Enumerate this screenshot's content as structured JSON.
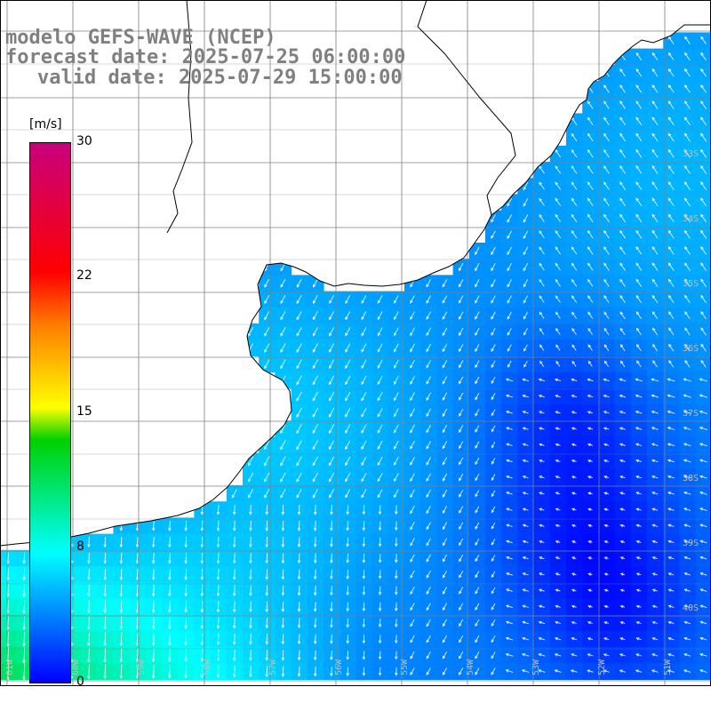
{
  "title": {
    "line1": "modelo GEFS-WAVE (NCEP)",
    "line2": "forecast date: 2025-07-25 06:00:00",
    "line3": "valid date: 2025-07-29 15:00:00"
  },
  "colorbar": {
    "unit": "[m/s]",
    "ticks": [
      "30",
      "22",
      "15",
      "8",
      "0"
    ],
    "tick_values": [
      30,
      22,
      15,
      8,
      0
    ],
    "range": [
      0,
      30
    ],
    "colors": [
      "#0000ff",
      "#00ffff",
      "#00d000",
      "#ffff00",
      "#ff8000",
      "#ff0000",
      "#c8007c"
    ]
  },
  "map": {
    "land_color": "#ffffff",
    "grid_color": "#808080",
    "coastline_color": "#000000",
    "arrow_color": "#ffffff",
    "variable": "wind speed and direction",
    "lat_labels": [
      "33S",
      "34S",
      "35S",
      "36S",
      "37S",
      "38S",
      "39S",
      "40S"
    ],
    "lon_labels": [
      "61W",
      "60W",
      "59W",
      "58W",
      "57W",
      "56W",
      "55W",
      "54W",
      "53W",
      "52W",
      "51W"
    ]
  }
}
